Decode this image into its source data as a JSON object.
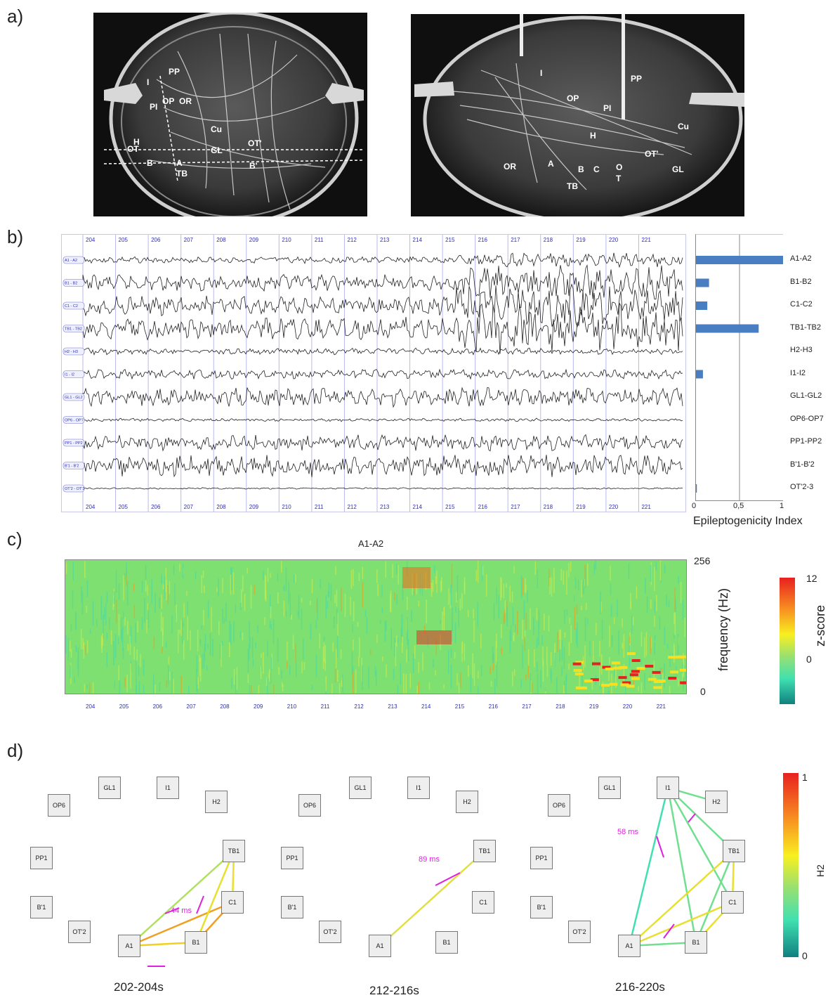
{
  "panels": {
    "a": "a)",
    "b": "b)",
    "c": "c)",
    "d": "d)"
  },
  "xray_left_labels": [
    "PP",
    "I",
    "PI",
    "OP",
    "OR",
    "Cu",
    "H",
    "OT",
    "GL",
    "OT'",
    "B",
    "A",
    "B'",
    "TB"
  ],
  "xray_right_labels": [
    "I",
    "PP",
    "OP",
    "PI",
    "H",
    "Cu",
    "OT'",
    "GL",
    "OR",
    "A",
    "B",
    "C",
    "O",
    "T",
    "TB"
  ],
  "eeg": {
    "time_ticks": [
      "204",
      "205",
      "206",
      "207",
      "208",
      "209",
      "210",
      "211",
      "212",
      "213",
      "214",
      "215",
      "216",
      "217",
      "218",
      "219",
      "220",
      "221"
    ],
    "channels": [
      "A1-A2",
      "B1-B2",
      "C1-C2",
      "TB1-TB2",
      "H2-H3",
      "I1-I2",
      "GL1-GL2",
      "OP6-OP7",
      "PP1-PP2",
      "B'1-B'2",
      "OT'2-3"
    ],
    "bipolar_tags": [
      "A1 - A2",
      "B1 - B2",
      "C1 - C2",
      "TB1 - TB2",
      "H2 - H3",
      "I1 - I2",
      "GL1 - GL2",
      "OP6 - OP7",
      "PP1 - PP2",
      "B'1 - B'2",
      "OT'2 - OT'3"
    ]
  },
  "chart_data": [
    {
      "type": "bar",
      "orientation": "horizontal",
      "categories": [
        "A1-A2",
        "B1-B2",
        "C1-C2",
        "TB1-TB2",
        "H2-H3",
        "I1-I2",
        "GL1-GL2",
        "OP6-OP7",
        "PP1-PP2",
        "B'1-B'2",
        "OT'2-3"
      ],
      "values": [
        1.0,
        0.15,
        0.13,
        0.72,
        0.0,
        0.08,
        0.0,
        0.0,
        0.0,
        0.0,
        0.01
      ],
      "xlabel": "Epileptogenicity Index",
      "xlim": [
        0,
        1
      ],
      "xticks": [
        "0",
        "0,5",
        "1"
      ],
      "color": "#4a7ec2"
    },
    {
      "type": "heatmap",
      "title": "A1-A2",
      "ylabel": "frequency (Hz)",
      "yticks": [
        "256",
        "0"
      ],
      "xticks": [
        "204",
        "205",
        "206",
        "207",
        "208",
        "209",
        "210",
        "211",
        "212",
        "213",
        "214",
        "215",
        "216",
        "217",
        "218",
        "219",
        "220",
        "221"
      ],
      "colorbar": {
        "label": "z-score",
        "ticks": [
          "12",
          "0"
        ]
      }
    }
  ],
  "graphs": {
    "colorbar": {
      "label": "H2",
      "ticks": [
        "1",
        "0"
      ]
    },
    "windows": [
      {
        "label": "202-204s",
        "delay": "44 ms"
      },
      {
        "label": "212-216s",
        "delay": "89 ms"
      },
      {
        "label": "216-220s",
        "delay": "58 ms"
      }
    ],
    "nodes": [
      "GL1",
      "I1",
      "H2",
      "OP6",
      "TB1",
      "PP1",
      "C1",
      "B'1",
      "OT'2",
      "A1",
      "B1"
    ]
  }
}
